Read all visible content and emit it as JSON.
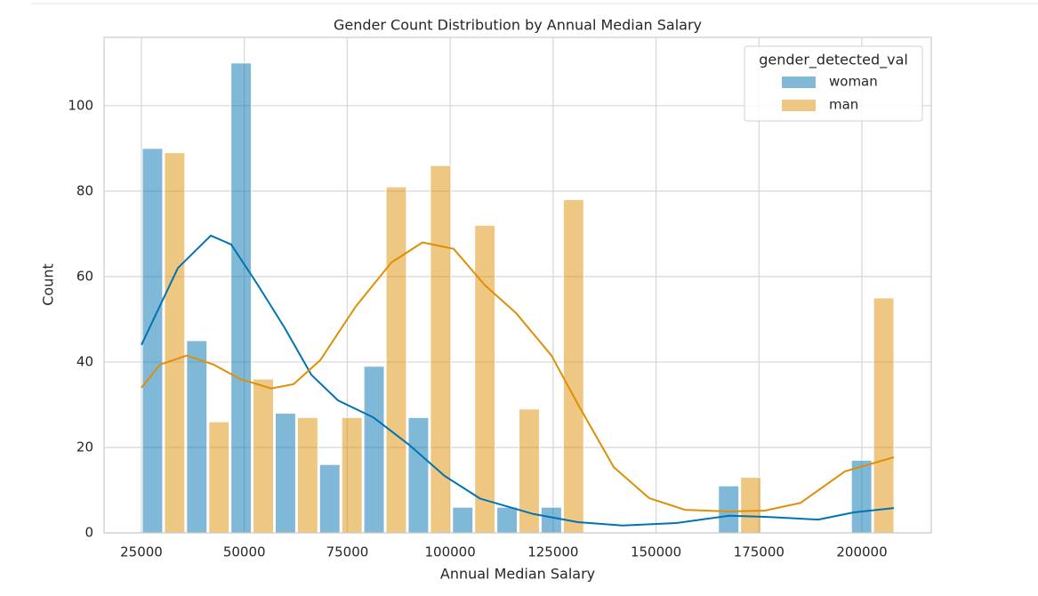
{
  "chart_data": {
    "type": "histogram",
    "title": "Gender Count Distribution by Annual Median Salary",
    "x_label": "Annual Median Salary",
    "y_label": "Count",
    "legend_title": "gender_detected_val",
    "legend": "upper right",
    "bins": [
      25000,
      35765,
      46530,
      57295,
      68060,
      78825,
      89590,
      100355,
      111120,
      121885,
      132650,
      143415,
      154180,
      164945,
      175710,
      186475,
      197240,
      208005
    ],
    "series": [
      {
        "name": "woman",
        "color": "#0173b2",
        "values": [
          90,
          45,
          110,
          28,
          16,
          39,
          27,
          6,
          6,
          6,
          0,
          0,
          0,
          11,
          0,
          0,
          17
        ],
        "kde_x": [
          25000,
          33857,
          41850,
          46819,
          53300,
          59780,
          66262,
          72743,
          81384,
          90025,
          98667,
          107308,
          120270,
          131071,
          141872,
          154834,
          167796,
          176437,
          189399,
          198040,
          207761
        ],
        "kde_y": [
          44,
          62,
          69.6,
          67.5,
          58,
          48,
          37,
          31,
          27,
          20.6,
          13.3,
          8,
          4.4,
          2.5,
          1.7,
          2.3,
          4,
          3.75,
          3.1,
          4.8,
          5.8
        ]
      },
      {
        "name": "man",
        "color": "#de8f05",
        "values": [
          89,
          26,
          36,
          27,
          27,
          81,
          86,
          72,
          29,
          78,
          0,
          0,
          0,
          13,
          0,
          0,
          55
        ],
        "kde_x": [
          25000,
          29537,
          36018,
          42498,
          48979,
          56540,
          61940,
          68422,
          77064,
          85705,
          93266,
          100827,
          108388,
          115949,
          124590,
          131071,
          139712,
          148353,
          156994,
          167796,
          176437,
          185078,
          195880,
          207761
        ],
        "kde_y": [
          34,
          39.4,
          41.5,
          39.4,
          36,
          33.8,
          34.8,
          40.4,
          53,
          63.3,
          68,
          66.5,
          58,
          51.5,
          41.5,
          30,
          15.4,
          8.1,
          5.4,
          5,
          5.2,
          7,
          14.4,
          17.7
        ]
      }
    ],
    "xlim": [
      15927,
      216850
    ],
    "ylim": [
      0,
      116
    ],
    "xticks": [
      25000,
      50000,
      75000,
      100000,
      125000,
      150000,
      175000,
      200000
    ],
    "yticks": [
      0,
      20,
      40,
      60,
      80,
      100
    ],
    "grid": true
  }
}
